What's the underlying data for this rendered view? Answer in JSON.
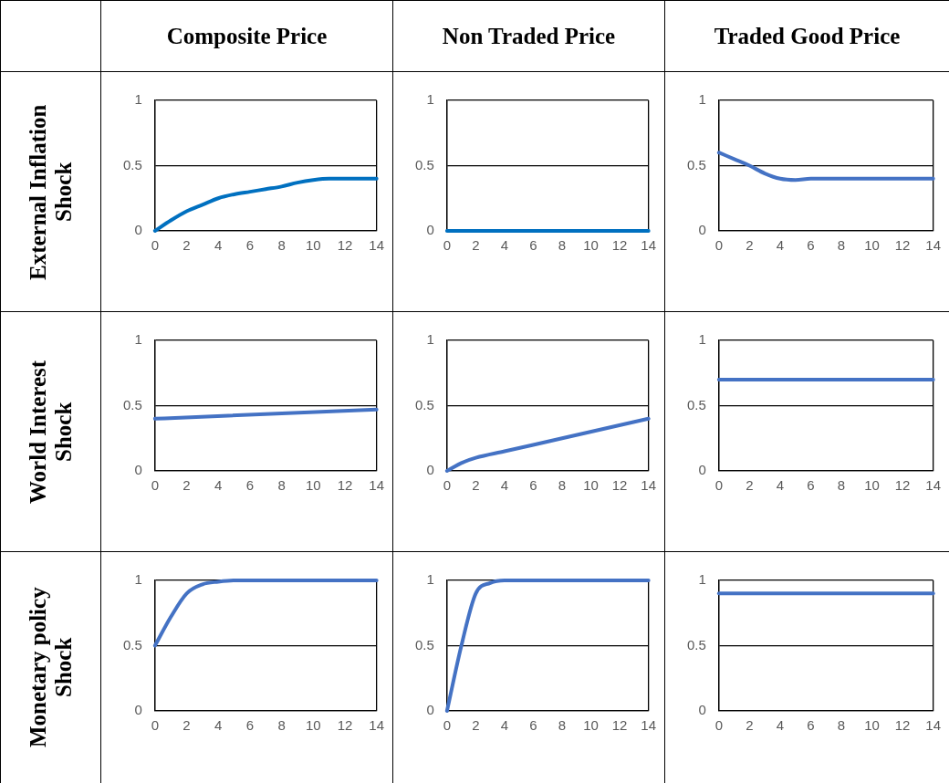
{
  "chart_data": [
    {
      "type": "line",
      "title": "Composite Price",
      "ylabel": "External Inflation Shock",
      "x": [
        0,
        1,
        2,
        3,
        4,
        5,
        6,
        7,
        8,
        9,
        10,
        11,
        12,
        13,
        14
      ],
      "series": [
        {
          "color": "#0070c0",
          "values": [
            0,
            0.08,
            0.15,
            0.2,
            0.25,
            0.28,
            0.3,
            0.32,
            0.34,
            0.37,
            0.39,
            0.4,
            0.4,
            0.4,
            0.4
          ]
        }
      ],
      "xlim": [
        0,
        14
      ],
      "xticks": [
        0,
        2,
        4,
        6,
        8,
        10,
        12,
        14
      ],
      "ylim": [
        0,
        1
      ],
      "yticks": [
        0,
        0.5,
        1
      ],
      "grid": "y",
      "legend": false,
      "marker": "none"
    },
    {
      "type": "line",
      "title": "Non Traded Price",
      "x": [
        0,
        14
      ],
      "series": [
        {
          "color": "#0070c0",
          "values": [
            0,
            0
          ]
        }
      ],
      "xlim": [
        0,
        14
      ],
      "xticks": [
        0,
        2,
        4,
        6,
        8,
        10,
        12,
        14
      ],
      "ylim": [
        0,
        1
      ],
      "yticks": [
        0,
        0.5,
        1
      ],
      "grid": "y",
      "legend": false,
      "marker": "none"
    },
    {
      "type": "line",
      "title": "Traded Good Price",
      "x": [
        0,
        1,
        2,
        3,
        4,
        5,
        6,
        14
      ],
      "series": [
        {
          "color": "#4472c4",
          "values": [
            0.6,
            0.55,
            0.5,
            0.44,
            0.4,
            0.39,
            0.4,
            0.4
          ]
        }
      ],
      "xlim": [
        0,
        14
      ],
      "xticks": [
        0,
        2,
        4,
        6,
        8,
        10,
        12,
        14
      ],
      "ylim": [
        0,
        1
      ],
      "yticks": [
        0,
        0.5,
        1
      ],
      "grid": "y",
      "legend": false,
      "marker": "none"
    },
    {
      "type": "line",
      "ylabel": "World Interest Shock",
      "x": [
        0,
        14
      ],
      "series": [
        {
          "color": "#4472c4",
          "values": [
            0.4,
            0.47
          ]
        }
      ],
      "xlim": [
        0,
        14
      ],
      "xticks": [
        0,
        2,
        4,
        6,
        8,
        10,
        12,
        14
      ],
      "ylim": [
        0,
        1
      ],
      "yticks": [
        0,
        0.5,
        1
      ],
      "grid": "y",
      "legend": false,
      "marker": "none"
    },
    {
      "type": "line",
      "x": [
        0,
        1,
        2,
        4,
        8,
        14
      ],
      "series": [
        {
          "color": "#4472c4",
          "values": [
            0,
            0.06,
            0.1,
            0.15,
            0.25,
            0.4
          ]
        }
      ],
      "xlim": [
        0,
        14
      ],
      "xticks": [
        0,
        2,
        4,
        6,
        8,
        10,
        12,
        14
      ],
      "ylim": [
        0,
        1
      ],
      "yticks": [
        0,
        0.5,
        1
      ],
      "grid": "y",
      "legend": false,
      "marker": "none"
    },
    {
      "type": "line",
      "x": [
        0,
        14
      ],
      "series": [
        {
          "color": "#4472c4",
          "values": [
            0.7,
            0.7
          ]
        }
      ],
      "xlim": [
        0,
        14
      ],
      "xticks": [
        0,
        2,
        4,
        6,
        8,
        10,
        12,
        14
      ],
      "ylim": [
        0,
        1
      ],
      "yticks": [
        0,
        0.5,
        1
      ],
      "grid": "y",
      "legend": false,
      "marker": "none"
    },
    {
      "type": "line",
      "ylabel": "Monetary policy Shock",
      "x": [
        0,
        1,
        2,
        3,
        4,
        5,
        14
      ],
      "series": [
        {
          "color": "#4472c4",
          "values": [
            0.5,
            0.72,
            0.9,
            0.97,
            0.99,
            1,
            1
          ]
        }
      ],
      "xlim": [
        0,
        14
      ],
      "xticks": [
        0,
        2,
        4,
        6,
        8,
        10,
        12,
        14
      ],
      "ylim": [
        0,
        1
      ],
      "yticks": [
        0,
        0.5,
        1
      ],
      "grid": "y",
      "legend": false,
      "marker": "none"
    },
    {
      "type": "line",
      "x": [
        0,
        1,
        2,
        3,
        4,
        14
      ],
      "series": [
        {
          "color": "#4472c4",
          "values": [
            0,
            0.5,
            0.9,
            0.98,
            1,
            1
          ]
        }
      ],
      "xlim": [
        0,
        14
      ],
      "xticks": [
        0,
        2,
        4,
        6,
        8,
        10,
        12,
        14
      ],
      "ylim": [
        0,
        1
      ],
      "yticks": [
        0,
        0.5,
        1
      ],
      "grid": "y",
      "legend": false,
      "marker": "none"
    },
    {
      "type": "line",
      "x": [
        0,
        14
      ],
      "series": [
        {
          "color": "#4472c4",
          "values": [
            0.9,
            0.9
          ]
        }
      ],
      "xlim": [
        0,
        14
      ],
      "xticks": [
        0,
        2,
        4,
        6,
        8,
        10,
        12,
        14
      ],
      "ylim": [
        0,
        1
      ],
      "yticks": [
        0,
        0.5,
        1
      ],
      "grid": "y",
      "legend": false,
      "marker": "none"
    }
  ]
}
